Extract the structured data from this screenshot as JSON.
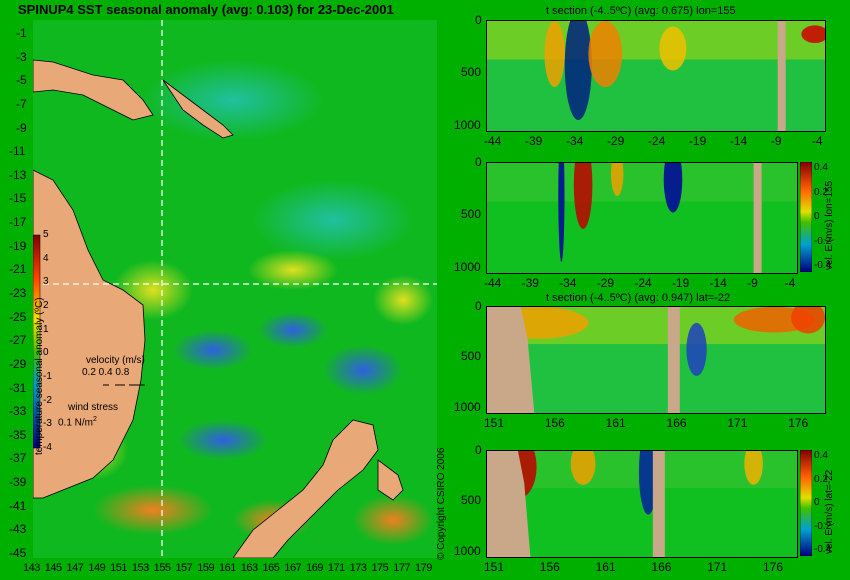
{
  "map": {
    "title": "SPINUP4 SST seasonal anomaly (avg: 0.103) for 23-Dec-2001",
    "lat_ticks": [
      "-1",
      "-3",
      "-5",
      "-7",
      "-9",
      "-11",
      "-13",
      "-15",
      "-17",
      "-19",
      "-21",
      "-23",
      "-25",
      "-27",
      "-29",
      "-31",
      "-33",
      "-35",
      "-37",
      "-39",
      "-41",
      "-43",
      "-45"
    ],
    "lon_ticks": [
      "143",
      "145",
      "147",
      "149",
      "151",
      "153",
      "155",
      "157",
      "159",
      "161",
      "163",
      "165",
      "167",
      "169",
      "171",
      "173",
      "175",
      "177",
      "179"
    ],
    "colorbar_ticks": [
      "5",
      "4",
      "3",
      "2",
      "1",
      "0",
      "-1",
      "-2",
      "-3",
      "-4"
    ],
    "colorbar_label": "temperature seasonal anomaly (ºC)",
    "velocity_label": "velocity (m/s)",
    "velocity_scale": "0.2 0.4 0.8",
    "wind_label": "wind stress",
    "wind_scale": "0.1 N/m",
    "wind_sup": "2"
  },
  "copyright": "© Copyright CSIRO 2006",
  "panels": [
    {
      "title": "t section (-4..5ºC) (avg: 0.675) lon=155",
      "x_ticks": [
        "-44",
        "-39",
        "-34",
        "-29",
        "-24",
        "-19",
        "-14",
        "-9",
        "-4"
      ],
      "y_ticks": [
        "0",
        "500",
        "1000"
      ]
    },
    {
      "title": "",
      "x_ticks": [
        "-44",
        "-39",
        "-34",
        "-29",
        "-24",
        "-19",
        "-14",
        "-9",
        "-4"
      ],
      "y_ticks": [
        "0",
        "500",
        "1000"
      ],
      "cbar_ticks": [
        "0.4",
        "0.2",
        "0",
        "-0.2",
        "-0.4"
      ],
      "cbar_label": "vel. E (m/s) lon=155"
    },
    {
      "title": "t section (-4..5ºC) (avg: 0.947) lat=-22",
      "x_ticks": [
        "151",
        "156",
        "161",
        "166",
        "171",
        "176"
      ],
      "y_ticks": [
        "0",
        "500",
        "1000"
      ]
    },
    {
      "title": "",
      "x_ticks": [
        "151",
        "156",
        "161",
        "166",
        "171",
        "176"
      ],
      "y_ticks": [
        "0",
        "500",
        "1000"
      ],
      "cbar_ticks": [
        "0.4",
        "0.2",
        "0",
        "-0.2",
        "-0.4"
      ],
      "cbar_label": "vel. E (m/s) lat=-22"
    }
  ],
  "chart_data": [
    {
      "type": "heatmap",
      "title": "SPINUP4 SST seasonal anomaly (avg: 0.103) for 23-Dec-2001",
      "xlabel": "",
      "ylabel": "",
      "xlim": [
        143,
        180
      ],
      "ylim": [
        -45,
        0
      ],
      "colorbar_range": [
        -4,
        5
      ],
      "grid": false
    },
    {
      "type": "heatmap",
      "title": "t section (-4..5ºC) (avg: 0.675) lon=155",
      "x_range": [
        -45,
        0
      ],
      "y_range": [
        0,
        1000
      ],
      "colorbar_range": [
        -4,
        5
      ]
    },
    {
      "type": "heatmap",
      "title": "",
      "x_range": [
        -45,
        0
      ],
      "y_range": [
        0,
        1000
      ],
      "colorbar_range": [
        -0.4,
        0.4
      ],
      "colorbar_label": "vel. E (m/s) lon=155"
    },
    {
      "type": "heatmap",
      "title": "t section (-4..5ºC) (avg: 0.947) lat=-22",
      "x_range": [
        150,
        180
      ],
      "y_range": [
        0,
        1000
      ],
      "colorbar_range": [
        -4,
        5
      ]
    },
    {
      "type": "heatmap",
      "title": "",
      "x_range": [
        150,
        180
      ],
      "y_range": [
        0,
        1000
      ],
      "colorbar_range": [
        -0.4,
        0.4
      ],
      "colorbar_label": "vel. E (m/s) lat=-22"
    }
  ]
}
